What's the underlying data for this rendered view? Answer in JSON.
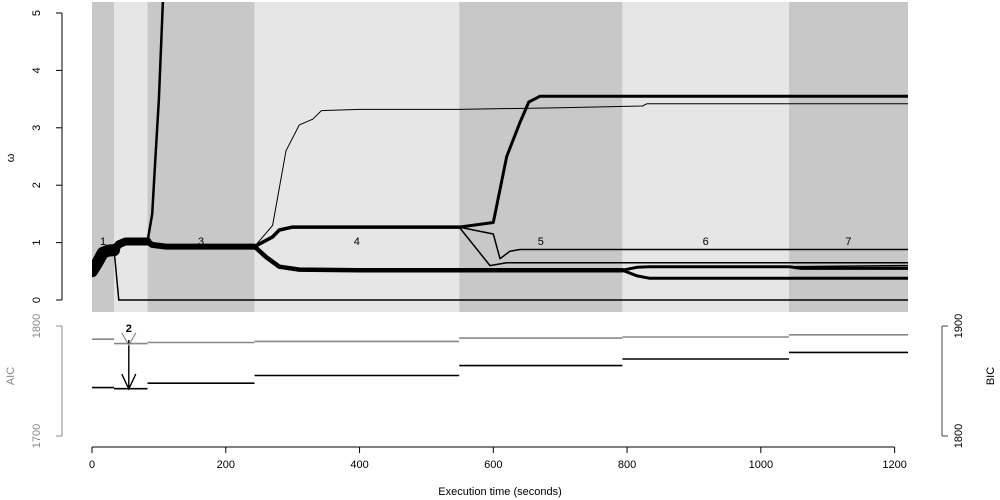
{
  "chart_data": [
    {
      "type": "line",
      "ylabel": "ω",
      "xlim": [
        0,
        1220
      ],
      "ylim": [
        0,
        5
      ],
      "y_ticks": [
        "0",
        "1",
        "2",
        "3",
        "4",
        "5"
      ],
      "phases": [
        {
          "label": "1",
          "start": 0,
          "end": 33
        },
        {
          "label": "2",
          "start": 33,
          "end": 83
        },
        {
          "label": "3",
          "start": 83,
          "end": 243
        },
        {
          "label": "4",
          "start": 243,
          "end": 549
        },
        {
          "label": "5",
          "start": 549,
          "end": 793
        },
        {
          "label": "6",
          "start": 793,
          "end": 1042
        },
        {
          "label": "7",
          "start": 1042,
          "end": 1220
        }
      ],
      "phase_colors": [
        "#c8c8c8",
        "#e6e6e6"
      ],
      "series": [
        {
          "weight": 12,
          "points": [
            [
              0,
              0.5
            ],
            [
              8,
              0.65
            ],
            [
              16,
              0.82
            ],
            [
              24,
              0.86
            ],
            [
              33,
              0.87
            ]
          ]
        },
        {
          "weight": 1.5,
          "points": [
            [
              33,
              0.87
            ],
            [
              40,
              0
            ]
          ]
        },
        {
          "weight": 1.5,
          "points": [
            [
              40,
              0
            ],
            [
              1220,
              0
            ]
          ]
        },
        {
          "weight": 8,
          "points": [
            [
              33,
              0.87
            ],
            [
              40,
              0.97
            ],
            [
              50,
              1.02
            ],
            [
              60,
              1.02
            ],
            [
              70,
              1.02
            ],
            [
              83,
              1.02
            ]
          ]
        },
        {
          "weight": 2.5,
          "points": [
            [
              83,
              1.02
            ],
            [
              90,
              1.5
            ],
            [
              95,
              2.5
            ],
            [
              100,
              3.5
            ],
            [
              106,
              5.2
            ]
          ]
        },
        {
          "weight": 6,
          "points": [
            [
              83,
              1.02
            ],
            [
              90,
              0.96
            ],
            [
              110,
              0.93
            ],
            [
              150,
              0.93
            ],
            [
              200,
              0.93
            ],
            [
              243,
              0.93
            ]
          ]
        },
        {
          "weight": 1,
          "points": [
            [
              243,
              0.93
            ],
            [
              270,
              1.3
            ],
            [
              290,
              2.6
            ],
            [
              310,
              3.05
            ],
            [
              330,
              3.15
            ],
            [
              343,
              3.3
            ],
            [
              400,
              3.32
            ],
            [
              549,
              3.32
            ],
            [
              700,
              3.35
            ],
            [
              823,
              3.38
            ],
            [
              830,
              3.42
            ],
            [
              1000,
              3.42
            ],
            [
              1220,
              3.42
            ]
          ]
        },
        {
          "weight": 3.5,
          "points": [
            [
              243,
              0.93
            ],
            [
              270,
              1.1
            ],
            [
              280,
              1.22
            ],
            [
              300,
              1.27
            ],
            [
              400,
              1.27
            ],
            [
              549,
              1.27
            ]
          ]
        },
        {
          "weight": 4.5,
          "points": [
            [
              243,
              0.93
            ],
            [
              260,
              0.75
            ],
            [
              280,
              0.58
            ],
            [
              310,
              0.53
            ],
            [
              400,
              0.52
            ],
            [
              549,
              0.52
            ],
            [
              793,
              0.52
            ]
          ]
        },
        {
          "weight": 3,
          "points": [
            [
              549,
              1.27
            ],
            [
              600,
              1.35
            ],
            [
              620,
              2.5
            ],
            [
              640,
              3.1
            ],
            [
              653,
              3.45
            ],
            [
              670,
              3.55
            ],
            [
              900,
              3.55
            ],
            [
              1220,
              3.55
            ]
          ]
        },
        {
          "weight": 1.5,
          "points": [
            [
              549,
              1.27
            ],
            [
              600,
              1.15
            ],
            [
              610,
              0.72
            ],
            [
              625,
              0.85
            ],
            [
              640,
              0.88
            ],
            [
              800,
              0.88
            ],
            [
              1000,
              0.88
            ],
            [
              1220,
              0.88
            ]
          ]
        },
        {
          "weight": 1.5,
          "points": [
            [
              549,
              1.27
            ],
            [
              595,
              0.6
            ],
            [
              620,
              0.65
            ],
            [
              1220,
              0.65
            ]
          ]
        },
        {
          "weight": 3,
          "points": [
            [
              793,
              0.52
            ],
            [
              815,
              0.42
            ],
            [
              833,
              0.38
            ],
            [
              900,
              0.38
            ],
            [
              1220,
              0.38
            ]
          ]
        },
        {
          "weight": 3,
          "points": [
            [
              793,
              0.52
            ],
            [
              815,
              0.57
            ],
            [
              833,
              0.58
            ],
            [
              1042,
              0.58
            ],
            [
              1060,
              0.55
            ],
            [
              1220,
              0.55
            ]
          ]
        },
        {
          "weight": 1.5,
          "points": [
            [
              1042,
              0.58
            ],
            [
              1220,
              0.6
            ]
          ]
        }
      ],
      "phase_label_y": 1.1
    },
    {
      "type": "line",
      "xlabel": "Execution time (seconds)",
      "x_ticks": [
        "0",
        "200",
        "400",
        "600",
        "800",
        "1000",
        "1200"
      ],
      "x_tick_values": [
        0,
        200,
        400,
        600,
        800,
        1000,
        1200
      ],
      "left_axis": {
        "label": "AIC",
        "ticks": [
          "1700",
          "1800"
        ],
        "color": "#888888",
        "range": [
          1700,
          1800
        ]
      },
      "right_axis": {
        "label": "BIC",
        "ticks": [
          "1800",
          "1900"
        ],
        "color": "#000000",
        "range": [
          1800,
          1900
        ]
      },
      "aic_segments": [
        {
          "x0": 0,
          "x1": 33,
          "y": 1788
        },
        {
          "x0": 33,
          "x1": 83,
          "y": 1784
        },
        {
          "x0": 83,
          "x1": 243,
          "y": 1785
        },
        {
          "x0": 243,
          "x1": 549,
          "y": 1786
        },
        {
          "x0": 549,
          "x1": 793,
          "y": 1789
        },
        {
          "x0": 793,
          "x1": 1042,
          "y": 1790
        },
        {
          "x0": 1042,
          "x1": 1220,
          "y": 1792
        }
      ],
      "bic_segments": [
        {
          "x0": 0,
          "x1": 33,
          "y": 1844
        },
        {
          "x0": 33,
          "x1": 83,
          "y": 1843
        },
        {
          "x0": 83,
          "x1": 243,
          "y": 1848
        },
        {
          "x0": 243,
          "x1": 549,
          "y": 1855
        },
        {
          "x0": 549,
          "x1": 793,
          "y": 1864
        },
        {
          "x0": 793,
          "x1": 1042,
          "y": 1870
        },
        {
          "x0": 1042,
          "x1": 1220,
          "y": 1876
        }
      ],
      "annotation": {
        "label": "2",
        "x": 55
      }
    }
  ]
}
